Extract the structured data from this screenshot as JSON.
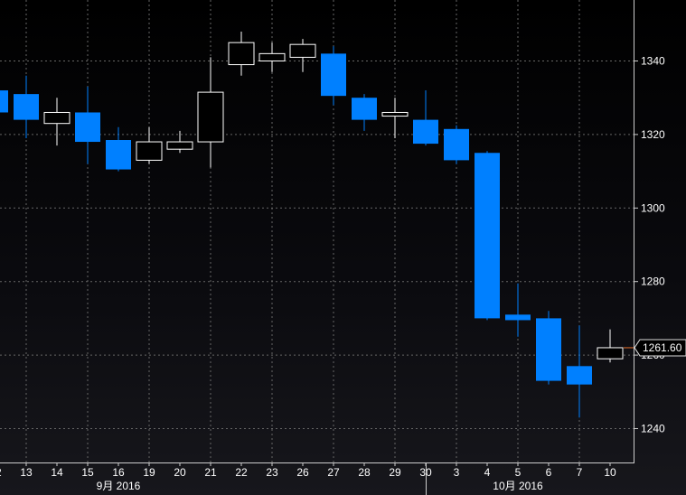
{
  "chart_data": {
    "type": "candlestick",
    "y_axis": {
      "ticks": [
        1240,
        1260,
        1280,
        1300,
        1320,
        1340
      ],
      "range": [
        1233,
        1356
      ],
      "position": "right"
    },
    "x_axis": {
      "categories": [
        "12",
        "13",
        "14",
        "15",
        "16",
        "19",
        "20",
        "21",
        "22",
        "23",
        "26",
        "27",
        "28",
        "29",
        "30",
        "3",
        "4",
        "5",
        "6",
        "7",
        "10"
      ],
      "month_labels": [
        {
          "label": "9月 2016",
          "under": "16"
        },
        {
          "label": "10月 2016",
          "under": "5"
        }
      ]
    },
    "grid": true,
    "last_price": "1261.60",
    "colors": {
      "up": "#ffffff",
      "down": "#0080ff",
      "grid": "#666666",
      "text": "#ffffff",
      "last_marker": "#e8702a"
    },
    "candles": [
      {
        "date": "12",
        "open": 1332,
        "high": 1336,
        "low": 1326,
        "close": 1326
      },
      {
        "date": "13",
        "open": 1331,
        "high": 1336,
        "low": 1319,
        "close": 1324
      },
      {
        "date": "14",
        "open": 1323,
        "high": 1330,
        "low": 1317,
        "close": 1326
      },
      {
        "date": "15",
        "open": 1326,
        "high": 1333,
        "low": 1312,
        "close": 1318
      },
      {
        "date": "16",
        "open": 1318.5,
        "high": 1322,
        "low": 1310,
        "close": 1310.5
      },
      {
        "date": "19",
        "open": 1313,
        "high": 1322,
        "low": 1312,
        "close": 1318
      },
      {
        "date": "20",
        "open": 1316,
        "high": 1321,
        "low": 1315,
        "close": 1318
      },
      {
        "date": "21",
        "open": 1318,
        "high": 1341,
        "low": 1311,
        "close": 1331.5
      },
      {
        "date": "22",
        "open": 1339,
        "high": 1348,
        "low": 1336,
        "close": 1345
      },
      {
        "date": "23",
        "open": 1340,
        "high": 1345,
        "low": 1337,
        "close": 1342
      },
      {
        "date": "26",
        "open": 1341,
        "high": 1346,
        "low": 1337,
        "close": 1344.5
      },
      {
        "date": "27",
        "open": 1342,
        "high": 1344,
        "low": 1328,
        "close": 1330.5
      },
      {
        "date": "28",
        "open": 1330,
        "high": 1331,
        "low": 1321,
        "close": 1324
      },
      {
        "date": "29",
        "open": 1325,
        "high": 1330,
        "low": 1319,
        "close": 1326
      },
      {
        "date": "30",
        "open": 1324,
        "high": 1332,
        "low": 1317,
        "close": 1317.5
      },
      {
        "date": "3",
        "open": 1321.5,
        "high": 1322.5,
        "low": 1312,
        "close": 1313
      },
      {
        "date": "4",
        "open": 1315,
        "high": 1315.5,
        "low": 1269.5,
        "close": 1270
      },
      {
        "date": "5",
        "open": 1271,
        "high": 1279.5,
        "low": 1265,
        "close": 1269.5
      },
      {
        "date": "6",
        "open": 1270,
        "high": 1272,
        "low": 1252,
        "close": 1253
      },
      {
        "date": "7",
        "open": 1257,
        "high": 1268,
        "low": 1243,
        "close": 1252
      },
      {
        "date": "10",
        "open": 1259,
        "high": 1267,
        "low": 1258,
        "close": 1262
      }
    ]
  }
}
